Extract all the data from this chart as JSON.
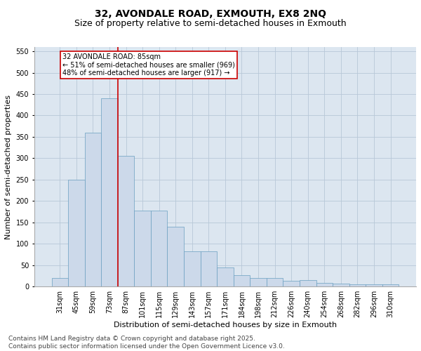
{
  "title_line1": "32, AVONDALE ROAD, EXMOUTH, EX8 2NQ",
  "title_line2": "Size of property relative to semi-detached houses in Exmouth",
  "xlabel": "Distribution of semi-detached houses by size in Exmouth",
  "ylabel": "Number of semi-detached properties",
  "bar_color": "#ccd9ea",
  "bar_edge_color": "#6a9fc0",
  "grid_color": "#b8c8d8",
  "background_color": "#dce6f0",
  "categories": [
    "31sqm",
    "45sqm",
    "59sqm",
    "73sqm",
    "87sqm",
    "101sqm",
    "115sqm",
    "129sqm",
    "143sqm",
    "157sqm",
    "171sqm",
    "184sqm",
    "198sqm",
    "212sqm",
    "226sqm",
    "240sqm",
    "254sqm",
    "268sqm",
    "282sqm",
    "296sqm",
    "310sqm"
  ],
  "values": [
    20,
    250,
    360,
    440,
    305,
    178,
    178,
    140,
    83,
    83,
    45,
    26,
    20,
    20,
    14,
    15,
    9,
    7,
    6,
    5,
    6
  ],
  "ylim": [
    0,
    560
  ],
  "yticks": [
    0,
    50,
    100,
    150,
    200,
    250,
    300,
    350,
    400,
    450,
    500,
    550
  ],
  "vline_color": "#cc0000",
  "annotation_text": "32 AVONDALE ROAD: 85sqm\n← 51% of semi-detached houses are smaller (969)\n48% of semi-detached houses are larger (917) →",
  "footer_line1": "Contains HM Land Registry data © Crown copyright and database right 2025.",
  "footer_line2": "Contains public sector information licensed under the Open Government Licence v3.0.",
  "title_fontsize": 10,
  "subtitle_fontsize": 9,
  "axis_label_fontsize": 8,
  "tick_fontsize": 7,
  "annotation_fontsize": 7,
  "footer_fontsize": 6.5
}
